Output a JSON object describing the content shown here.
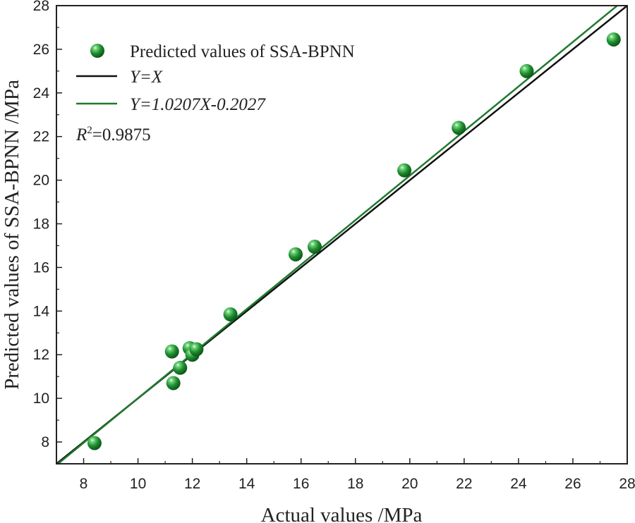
{
  "chart_data": {
    "type": "scatter",
    "xlabel": "Actual values /MPa",
    "ylabel": "Predicted values of SSA-BPNN /MPa",
    "xlim": [
      7,
      28
    ],
    "ylim": [
      7,
      28
    ],
    "x_ticks": [
      "8",
      "10",
      "12",
      "14",
      "16",
      "18",
      "20",
      "22",
      "24",
      "26",
      "28"
    ],
    "y_ticks": [
      "8",
      "10",
      "12",
      "14",
      "16",
      "18",
      "20",
      "22",
      "24",
      "26",
      "28"
    ],
    "grid": false,
    "legend_position": "top-left",
    "series": [
      {
        "name": "Predicted values of SSA-BPNN",
        "kind": "scatter",
        "color": "#1e8c2e",
        "points": [
          {
            "x": 8.4,
            "y": 7.95
          },
          {
            "x": 11.25,
            "y": 12.15
          },
          {
            "x": 11.3,
            "y": 10.7
          },
          {
            "x": 11.55,
            "y": 11.4
          },
          {
            "x": 11.9,
            "y": 12.3
          },
          {
            "x": 12.0,
            "y": 12.0
          },
          {
            "x": 12.15,
            "y": 12.25
          },
          {
            "x": 13.4,
            "y": 13.85
          },
          {
            "x": 15.8,
            "y": 16.6
          },
          {
            "x": 16.5,
            "y": 16.95
          },
          {
            "x": 19.8,
            "y": 20.45
          },
          {
            "x": 21.8,
            "y": 22.4
          },
          {
            "x": 24.3,
            "y": 25.0
          },
          {
            "x": 27.5,
            "y": 26.45
          }
        ]
      },
      {
        "name": "Y=X",
        "kind": "line",
        "color": "#111111",
        "slope": 1,
        "intercept": 0
      },
      {
        "name": "Y=1.0207X-0.2027",
        "kind": "line",
        "color": "#1e7a2e",
        "slope": 1.0207,
        "intercept": -0.2027
      }
    ],
    "annotation": {
      "r2_label": "R",
      "r2_sup": "2",
      "r2_value": "=0.9875"
    }
  }
}
